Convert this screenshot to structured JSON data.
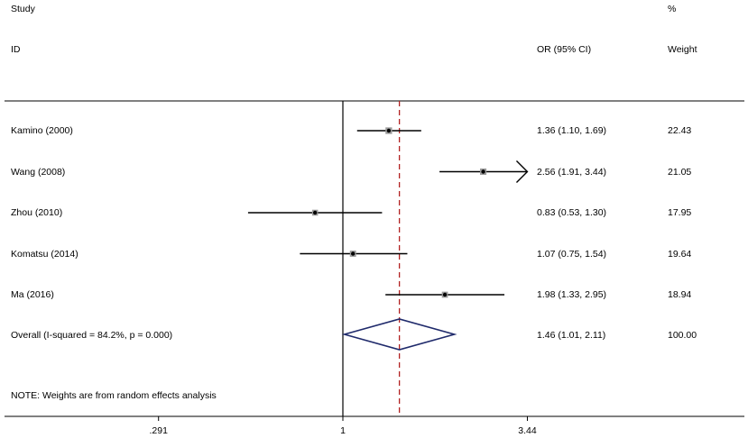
{
  "header": {
    "study_label": "Study",
    "id_label": "ID",
    "ci_label": "OR (95% CI)",
    "pct_label": "%",
    "weight_label": "Weight"
  },
  "chart_data": {
    "type": "forest",
    "x_scale": "log",
    "xlim": [
      0.291,
      3.44
    ],
    "x_ticks": [
      {
        "value": 0.291,
        "label": ".291"
      },
      {
        "value": 1,
        "label": "1"
      },
      {
        "value": 3.44,
        "label": "3.44"
      }
    ],
    "null_line": 1,
    "overall_line": 1.46,
    "studies": [
      {
        "label": "Kamino (2000)",
        "or": 1.36,
        "lo": 1.1,
        "hi": 1.69,
        "ci_text": "1.36 (1.10, 1.69)",
        "weight": "22.43",
        "arrow_right": false
      },
      {
        "label": "Wang (2008)",
        "or": 2.56,
        "lo": 1.91,
        "hi": 3.44,
        "ci_text": "2.56 (1.91, 3.44)",
        "weight": "21.05",
        "arrow_right": true
      },
      {
        "label": "Zhou (2010)",
        "or": 0.83,
        "lo": 0.53,
        "hi": 1.3,
        "ci_text": "0.83 (0.53, 1.30)",
        "weight": "17.95",
        "arrow_right": false
      },
      {
        "label": "Komatsu (2014)",
        "or": 1.07,
        "lo": 0.75,
        "hi": 1.54,
        "ci_text": "1.07 (0.75, 1.54)",
        "weight": "19.64",
        "arrow_right": false
      },
      {
        "label": "Ma (2016)",
        "or": 1.98,
        "lo": 1.33,
        "hi": 2.95,
        "ci_text": "1.98 (1.33, 2.95)",
        "weight": "18.94",
        "arrow_right": false
      }
    ],
    "overall": {
      "label": "Overall  (I-squared = 84.2%, p = 0.000)",
      "or": 1.46,
      "lo": 1.01,
      "hi": 2.11,
      "ci_text": "1.46 (1.01, 2.11)",
      "weight": "100.00"
    },
    "note": "NOTE: Weights are from random effects analysis",
    "colors": {
      "axis": "#000000",
      "overall_line": "#b22222",
      "diamond": "#1f2a6b",
      "marker_box": "#9a9a9a"
    }
  }
}
